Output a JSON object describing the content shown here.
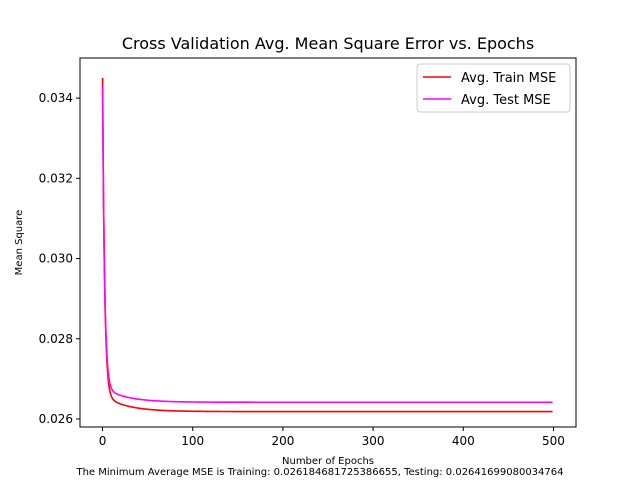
{
  "chart_data": {
    "type": "line",
    "title": "Cross Validation Avg. Mean Square Error vs. Epochs",
    "xlabel": "Number of Epochs",
    "ylabel": "Mean Square",
    "caption": "The Minimum Average MSE is Training: 0.026184681725386655, Testing: 0.02641699080034764",
    "xlim": [
      -25,
      525
    ],
    "ylim": [
      0.0258,
      0.035
    ],
    "xticks": [
      0,
      100,
      200,
      300,
      400,
      500
    ],
    "xtick_labels": [
      "0",
      "100",
      "200",
      "300",
      "400",
      "500"
    ],
    "yticks": [
      0.026,
      0.028,
      0.03,
      0.032,
      0.034
    ],
    "ytick_labels": [
      "0.026",
      "0.028",
      "0.030",
      "0.032",
      "0.034"
    ],
    "grid": false,
    "legend_position": "top-right",
    "decay": {
      "epochs": 500,
      "initial": 0.0345,
      "fast_rate": 0.45,
      "slow_amplitude": 0.00042,
      "slow_rate": 0.04
    },
    "series": [
      {
        "name": "Avg. Train MSE",
        "color": "#ff0000",
        "final": 0.026184681725386655,
        "x_points": [
          0,
          2,
          4,
          6,
          8,
          10,
          20,
          40,
          60,
          80,
          100,
          150,
          200,
          300,
          400,
          500
        ],
        "y_points": [
          0.0345,
          0.0312,
          0.0288,
          0.0273,
          0.0267,
          0.02657,
          0.02645,
          0.02632,
          0.02625,
          0.02622,
          0.0262,
          0.026188,
          0.026186,
          0.026185,
          0.026185,
          0.026185
        ]
      },
      {
        "name": "Avg. Test MSE",
        "color": "#ff00ff",
        "final": 0.02641699080034764,
        "x_points": [
          0,
          2,
          4,
          6,
          8,
          10,
          20,
          40,
          60,
          80,
          100,
          150,
          200,
          300,
          400,
          500
        ],
        "y_points": [
          0.0345,
          0.0313,
          0.029,
          0.0275,
          0.0269,
          0.0268,
          0.02668,
          0.02655,
          0.02648,
          0.02645,
          0.02643,
          0.02642,
          0.026418,
          0.026417,
          0.026417,
          0.026417
        ]
      }
    ]
  }
}
